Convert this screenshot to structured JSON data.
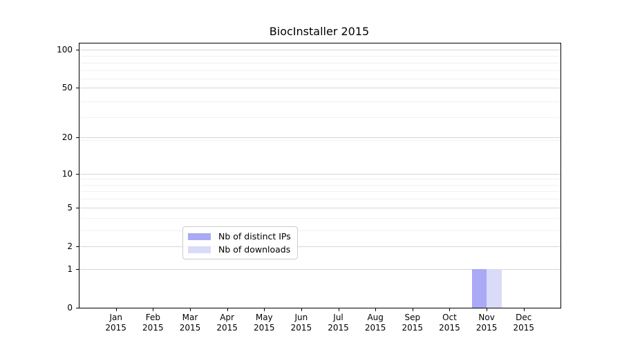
{
  "figure": {
    "title": "BiocInstaller 2015",
    "background_color": "#ffffff"
  },
  "chart_data": {
    "type": "bar",
    "title": "BiocInstaller 2015",
    "categories": [
      "Jan 2015",
      "Feb 2015",
      "Mar 2015",
      "Apr 2015",
      "May 2015",
      "Jun 2015",
      "Jul 2015",
      "Aug 2015",
      "Sep 2015",
      "Oct 2015",
      "Nov 2015",
      "Dec 2015"
    ],
    "series": [
      {
        "name": "Nb of distinct IPs",
        "color": "#a9a9f5",
        "values": [
          0,
          0,
          0,
          0,
          0,
          0,
          0,
          0,
          0,
          0,
          1,
          0
        ]
      },
      {
        "name": "Nb of downloads",
        "color": "#dadaf9",
        "values": [
          0,
          0,
          0,
          0,
          0,
          0,
          0,
          0,
          0,
          0,
          1,
          0
        ]
      }
    ],
    "xlabel": "",
    "ylabel": "",
    "y_axis": {
      "scale": "log1p",
      "major_ticks": [
        0,
        1,
        2,
        5,
        10,
        20,
        50,
        100
      ],
      "minor_gridline_values": [
        3,
        4,
        6,
        7,
        8,
        9,
        19,
        29,
        39,
        59,
        69,
        79,
        89
      ],
      "ylim": [
        0,
        110
      ]
    },
    "grid": true,
    "legend": {
      "position": "lower center",
      "entries": [
        "Nb of distinct IPs",
        "Nb of downloads"
      ]
    },
    "colors": {
      "major_gridline": "#d6d6d6",
      "minor_gridline": "#f0f0f0",
      "axis": "#000000",
      "distinct_ips_bar": "#a9a9f5",
      "downloads_bar": "#dadaf9"
    }
  }
}
